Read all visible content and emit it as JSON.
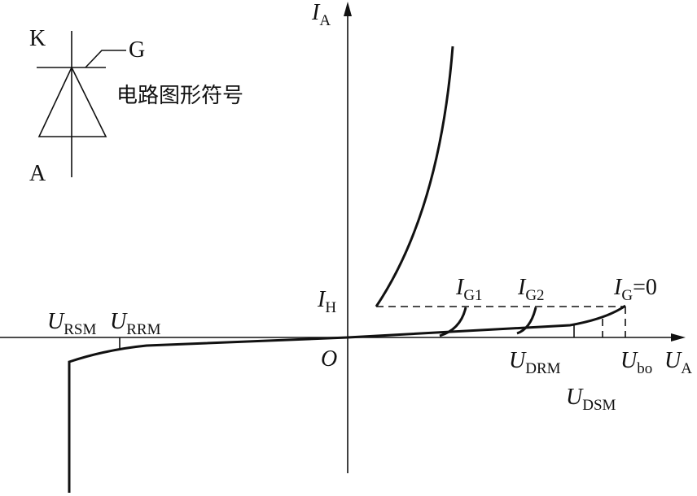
{
  "symbol": {
    "cathode": "K",
    "gate": "G",
    "anode": "A",
    "caption": "电路图形符号"
  },
  "axes": {
    "y_label": {
      "main": "I",
      "sub": "A"
    },
    "x_label": {
      "main": "U",
      "sub": "A"
    },
    "origin": "O"
  },
  "labels": {
    "holding": {
      "main": "I",
      "sub": "H"
    },
    "ig1": {
      "main": "I",
      "sub": "G1"
    },
    "ig2": {
      "main": "I",
      "sub": "G2"
    },
    "ig0": {
      "main": "I",
      "sub": "G",
      "tail": "=0"
    },
    "ursm": {
      "main": "U",
      "sub": "RSM"
    },
    "urrm": {
      "main": "U",
      "sub": "RRM"
    },
    "udrm": {
      "main": "U",
      "sub": "DRM"
    },
    "ubo": {
      "main": "U",
      "sub": "bo"
    },
    "udsm": {
      "main": "U",
      "sub": "DSM"
    }
  }
}
